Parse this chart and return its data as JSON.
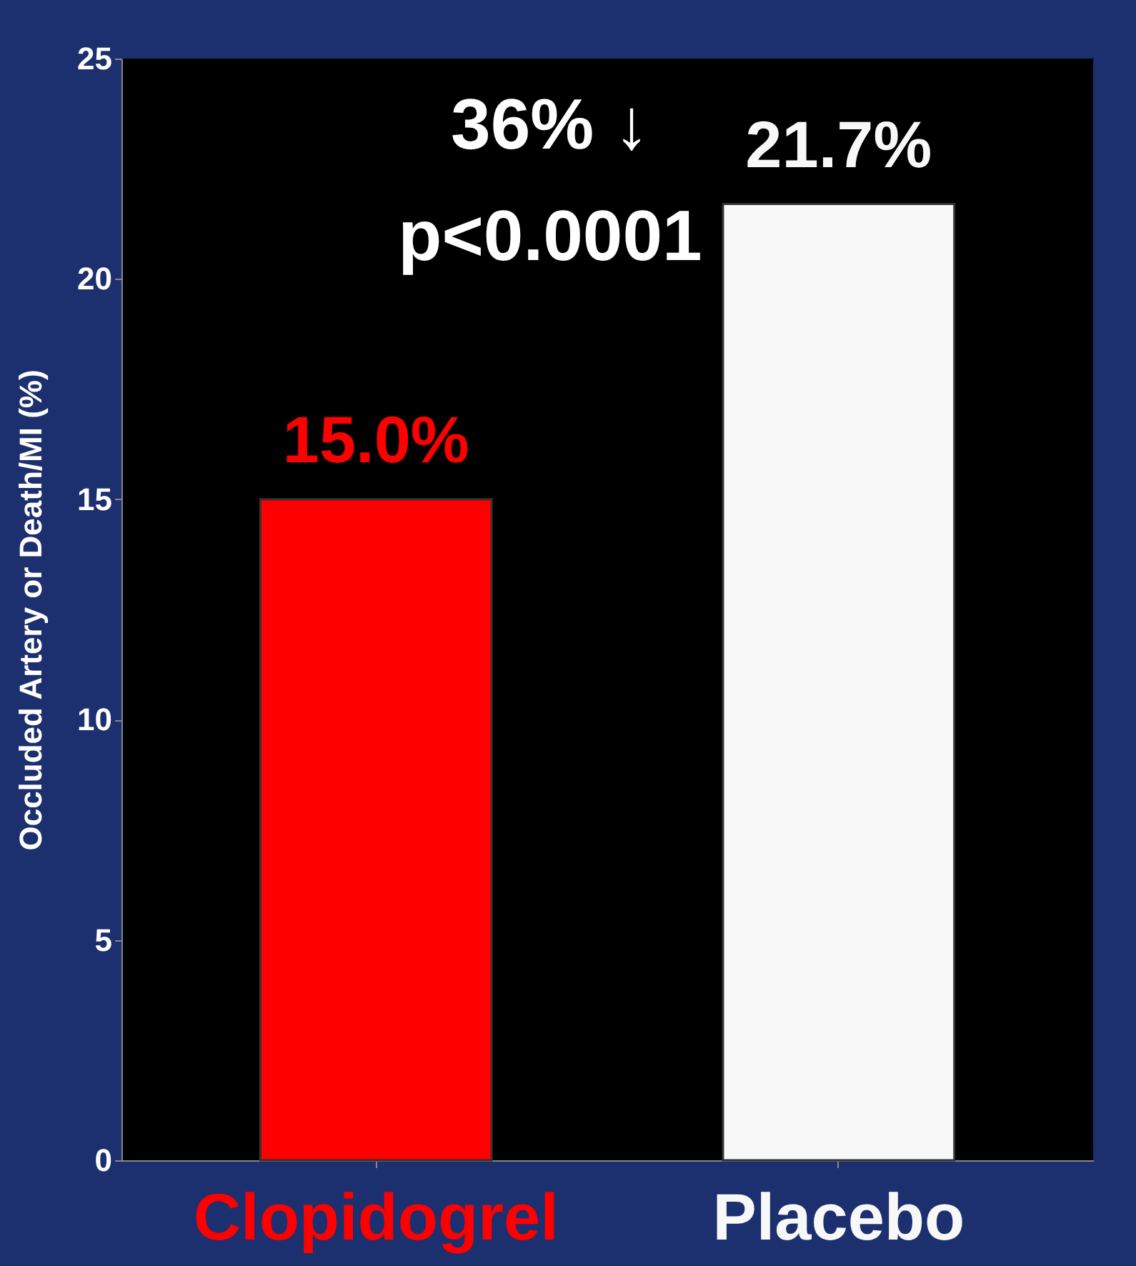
{
  "chart_data": {
    "type": "bar",
    "ylabel": "Occluded Artery or Death/MI  (%)",
    "categories": [
      "Clopidogrel",
      "Placebo"
    ],
    "values": [
      15.0,
      21.7
    ],
    "colors": [
      "#ff0000",
      "#f8f8f8"
    ],
    "value_labels": [
      "15.0%",
      "21.7%"
    ],
    "annotations": [
      "36% ↓",
      "p<0.0001"
    ],
    "ylim": [
      0,
      25
    ],
    "yticks": [
      0,
      5,
      10,
      15,
      20,
      25
    ],
    "grid": false
  }
}
